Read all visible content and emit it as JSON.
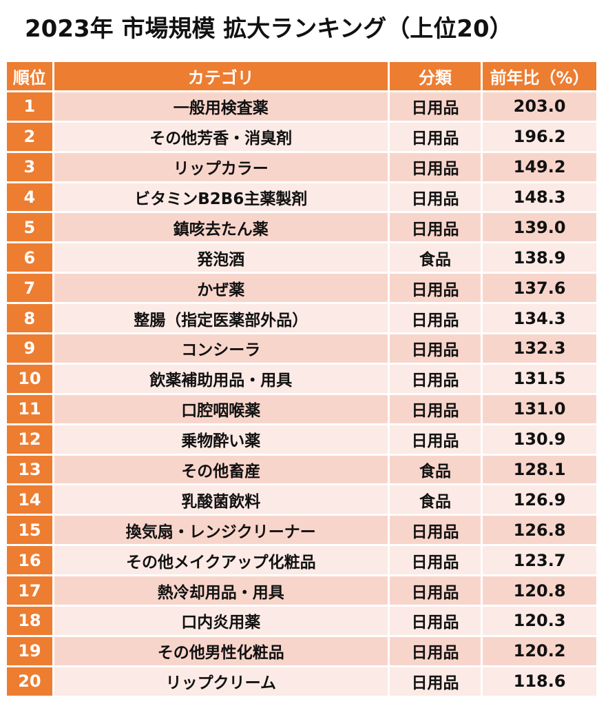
{
  "title": "2023年 市場規模 拡大ランキング（上位20）",
  "colors": {
    "header": "#ED7D31",
    "row_odd": "#F8D5CB",
    "row_even": "#FBEAE5"
  },
  "table": {
    "headers": [
      "順位",
      "カテゴリ",
      "分類",
      "前年比（%）"
    ],
    "rows": [
      {
        "rank": "1",
        "category": "一般用検査薬",
        "class": "日用品",
        "yoy": "203.0"
      },
      {
        "rank": "2",
        "category": "その他芳香・消臭剤",
        "class": "日用品",
        "yoy": "196.2"
      },
      {
        "rank": "3",
        "category": "リップカラー",
        "class": "日用品",
        "yoy": "149.2"
      },
      {
        "rank": "4",
        "category": "ビタミンB2B6主薬製剤",
        "class": "日用品",
        "yoy": "148.3"
      },
      {
        "rank": "5",
        "category": "鎮咳去たん薬",
        "class": "日用品",
        "yoy": "139.0"
      },
      {
        "rank": "6",
        "category": "発泡酒",
        "class": "食品",
        "yoy": "138.9"
      },
      {
        "rank": "7",
        "category": "かぜ薬",
        "class": "日用品",
        "yoy": "137.6"
      },
      {
        "rank": "8",
        "category": "整腸（指定医薬部外品）",
        "class": "日用品",
        "yoy": "134.3"
      },
      {
        "rank": "9",
        "category": "コンシーラ",
        "class": "日用品",
        "yoy": "132.3"
      },
      {
        "rank": "10",
        "category": "飲薬補助用品・用具",
        "class": "日用品",
        "yoy": "131.5"
      },
      {
        "rank": "11",
        "category": "口腔咽喉薬",
        "class": "日用品",
        "yoy": "131.0"
      },
      {
        "rank": "12",
        "category": "乗物酔い薬",
        "class": "日用品",
        "yoy": "130.9"
      },
      {
        "rank": "13",
        "category": "その他畜産",
        "class": "食品",
        "yoy": "128.1"
      },
      {
        "rank": "14",
        "category": "乳酸菌飲料",
        "class": "食品",
        "yoy": "126.9"
      },
      {
        "rank": "15",
        "category": "換気扇・レンジクリーナー",
        "class": "日用品",
        "yoy": "126.8"
      },
      {
        "rank": "16",
        "category": "その他メイクアップ化粧品",
        "class": "日用品",
        "yoy": "123.7"
      },
      {
        "rank": "17",
        "category": "熱冷却用品・用具",
        "class": "日用品",
        "yoy": "120.8"
      },
      {
        "rank": "18",
        "category": "口内炎用薬",
        "class": "日用品",
        "yoy": "120.3"
      },
      {
        "rank": "19",
        "category": "その他男性化粧品",
        "class": "日用品",
        "yoy": "120.2"
      },
      {
        "rank": "20",
        "category": "リップクリーム",
        "class": "日用品",
        "yoy": "118.6"
      }
    ]
  }
}
